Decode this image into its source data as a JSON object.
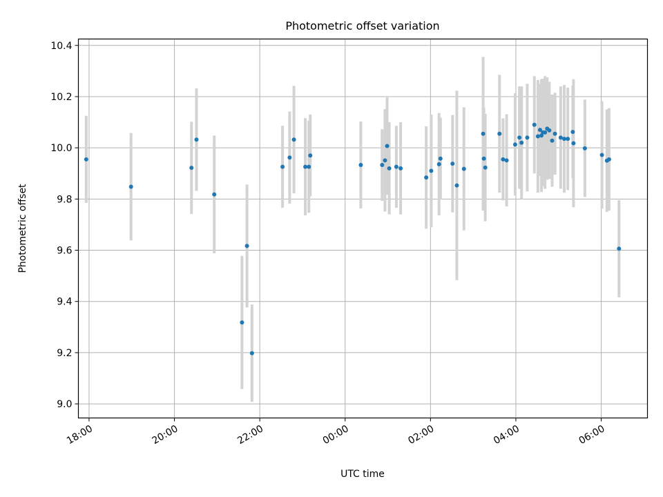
{
  "chart_data": {
    "type": "scatter",
    "title": "Photometric offset variation",
    "xlabel": "UTC time",
    "ylabel": "Photometric offset",
    "xlim": [
      "17:45",
      "31:05"
    ],
    "ylim": [
      8.945,
      10.425
    ],
    "grid": true,
    "x_tick_labels": [
      "18:00",
      "20:00",
      "22:00",
      "00:00",
      "02:00",
      "04:00",
      "06:00"
    ],
    "y_tick_labels": [
      "9.0",
      "9.2",
      "9.4",
      "9.6",
      "9.8",
      "10.0",
      "10.2",
      "10.4"
    ],
    "x_ticks_hours": [
      18,
      20,
      22,
      24,
      26,
      28,
      30
    ],
    "y_ticks": [
      9.0,
      9.2,
      9.4,
      9.6,
      9.8,
      10.0,
      10.2,
      10.4
    ],
    "colors": {
      "point": "#1f77b4",
      "errorbar": "#d3d3d3",
      "grid": "#b0b0b0"
    },
    "series": [
      {
        "x": [
          "17:56",
          "18:59",
          "20:24",
          "20:31",
          "20:56",
          "21:35",
          "21:42",
          "21:49",
          "22:32",
          "22:42",
          "22:48",
          "23:04",
          "23:09",
          "23:11",
          "00:22",
          "00:52",
          "00:56",
          "00:59",
          "01:02",
          "01:12",
          "01:18",
          "01:54",
          "02:01",
          "02:12",
          "02:14",
          "02:31",
          "02:37",
          "02:47",
          "03:14",
          "03:15",
          "03:17",
          "03:37",
          "03:42",
          "03:47",
          "03:59",
          "04:05",
          "04:08",
          "04:16",
          "04:26",
          "04:31",
          "04:34",
          "04:36",
          "04:38",
          "04:41",
          "04:44",
          "04:47",
          "04:51",
          "04:55",
          "05:03",
          "05:08",
          "05:13",
          "05:20",
          "05:21",
          "05:37",
          "06:01",
          "06:08",
          "06:11",
          "06:25"
        ],
        "y": [
          9.955,
          9.848,
          9.922,
          10.032,
          9.818,
          9.318,
          9.617,
          9.198,
          9.926,
          9.962,
          10.032,
          9.926,
          9.926,
          9.97,
          9.933,
          9.933,
          9.951,
          10.007,
          9.92,
          9.926,
          9.92,
          9.884,
          9.91,
          9.936,
          9.958,
          9.938,
          9.853,
          9.918,
          10.055,
          9.958,
          9.923,
          10.055,
          9.955,
          9.951,
          10.013,
          10.04,
          10.02,
          10.04,
          10.09,
          10.045,
          10.07,
          10.048,
          10.06,
          10.06,
          10.075,
          10.068,
          10.028,
          10.055,
          10.04,
          10.035,
          10.035,
          10.062,
          10.018,
          9.998,
          9.972,
          9.95,
          9.955,
          9.606
        ],
        "err": [
          0.17,
          0.21,
          0.18,
          0.2,
          0.23,
          0.26,
          0.24,
          0.19,
          0.16,
          0.18,
          0.21,
          0.19,
          0.18,
          0.16,
          0.17,
          0.14,
          0.2,
          0.19,
          0.18,
          0.16,
          0.18,
          0.2,
          0.22,
          0.2,
          0.16,
          0.19,
          0.37,
          0.24,
          0.3,
          0.2,
          0.21,
          0.23,
          0.16,
          0.18,
          0.2,
          0.2,
          0.22,
          0.21,
          0.19,
          0.22,
          0.18,
          0.22,
          0.21,
          0.22,
          0.2,
          0.19,
          0.18,
          0.16,
          0.2,
          0.21,
          0.2,
          0.18,
          0.25,
          0.19,
          0.21,
          0.2,
          0.2,
          0.19
        ]
      }
    ]
  }
}
